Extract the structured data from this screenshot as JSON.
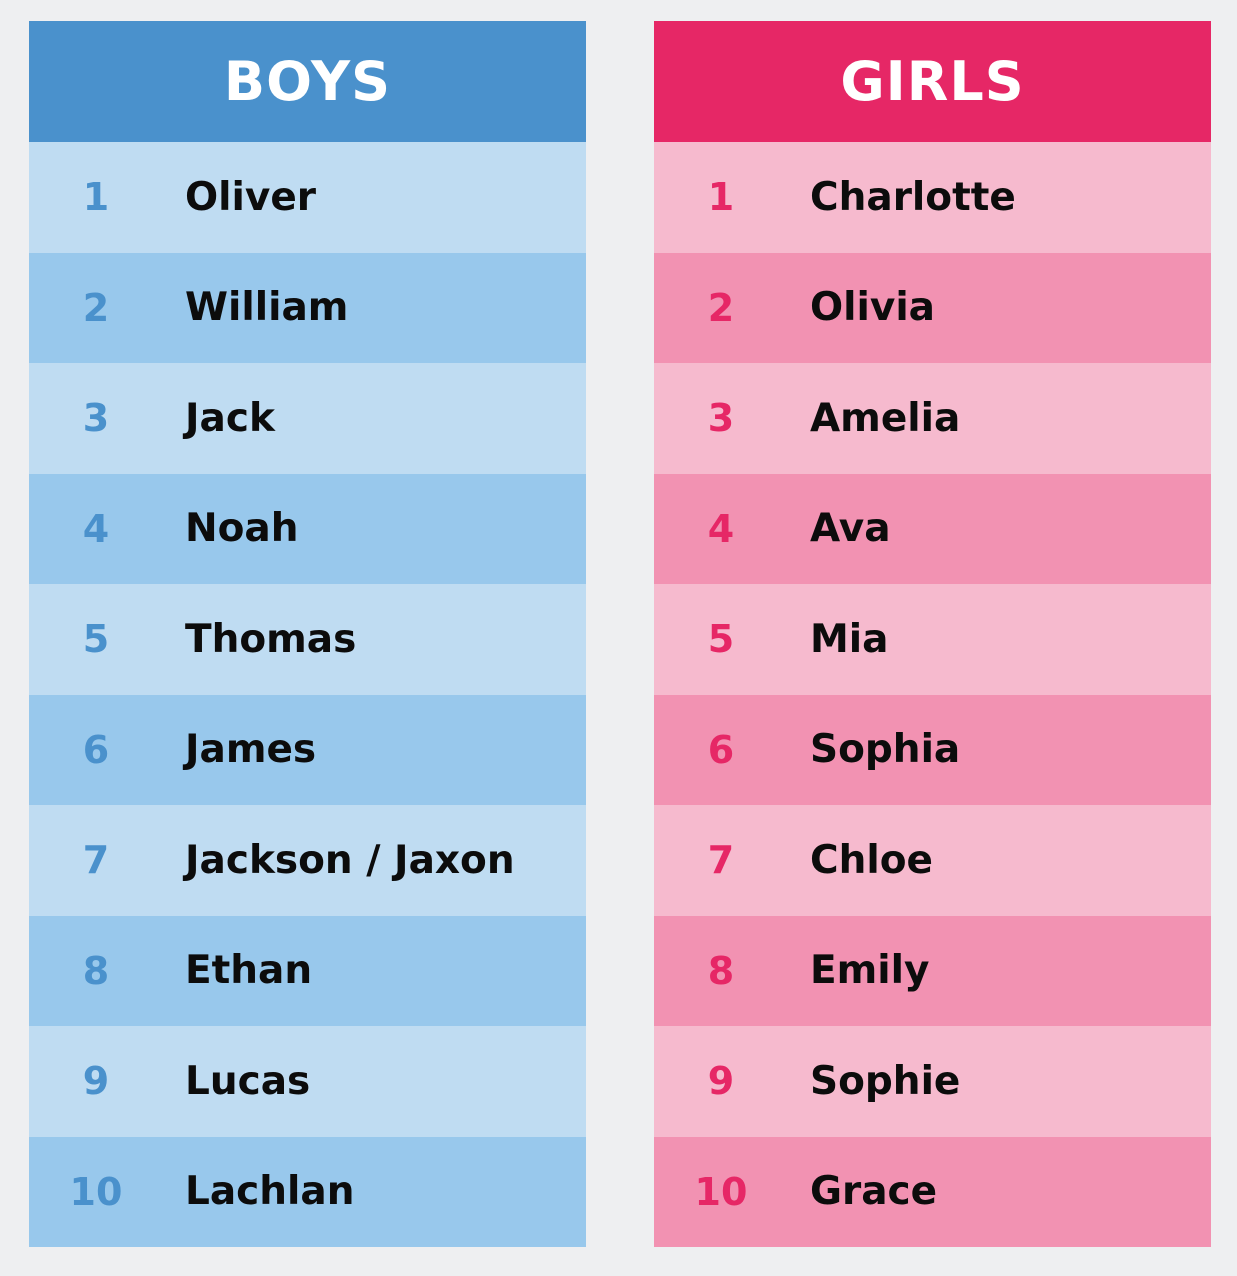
{
  "colors": {
    "page_background": "#eeeff1",
    "boys_header": "#4a91cc",
    "boys_row_light": "#bfdcf2",
    "boys_row_dark": "#98c8ec",
    "boys_rank": "#4a91cc",
    "girls_header": "#e62766",
    "girls_row_light": "#f6bace",
    "girls_row_dark": "#f292b2",
    "girls_rank": "#e62766",
    "name_text": "#0c0c0c"
  },
  "boys": {
    "title": "BOYS",
    "names": [
      {
        "rank": "1",
        "name": "Oliver"
      },
      {
        "rank": "2",
        "name": "William"
      },
      {
        "rank": "3",
        "name": "Jack"
      },
      {
        "rank": "4",
        "name": "Noah"
      },
      {
        "rank": "5",
        "name": "Thomas"
      },
      {
        "rank": "6",
        "name": "James"
      },
      {
        "rank": "7",
        "name": "Jackson / Jaxon"
      },
      {
        "rank": "8",
        "name": "Ethan"
      },
      {
        "rank": "9",
        "name": "Lucas"
      },
      {
        "rank": "10",
        "name": "Lachlan"
      }
    ]
  },
  "girls": {
    "title": "GIRLS",
    "names": [
      {
        "rank": "1",
        "name": "Charlotte"
      },
      {
        "rank": "2",
        "name": "Olivia"
      },
      {
        "rank": "3",
        "name": "Amelia"
      },
      {
        "rank": "4",
        "name": "Ava"
      },
      {
        "rank": "5",
        "name": "Mia"
      },
      {
        "rank": "6",
        "name": "Sophia"
      },
      {
        "rank": "7",
        "name": "Chloe"
      },
      {
        "rank": "8",
        "name": "Emily"
      },
      {
        "rank": "9",
        "name": "Sophie"
      },
      {
        "rank": "10",
        "name": "Grace"
      }
    ]
  }
}
